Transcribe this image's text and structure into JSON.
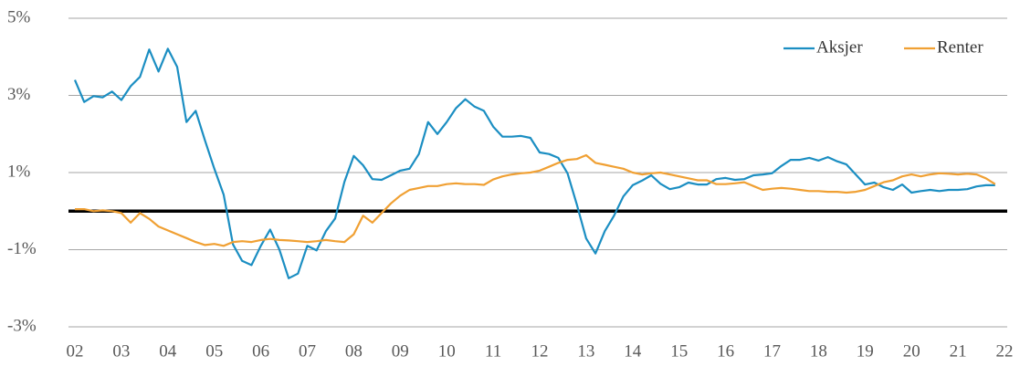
{
  "chart_data": {
    "type": "line",
    "x": [
      2002.0,
      2002.2,
      2002.4,
      2002.6,
      2002.8,
      2003.0,
      2003.2,
      2003.4,
      2003.6,
      2003.8,
      2004.0,
      2004.2,
      2004.4,
      2004.6,
      2004.8,
      2005.0,
      2005.2,
      2005.4,
      2005.6,
      2005.8,
      2006.0,
      2006.2,
      2006.4,
      2006.6,
      2006.8,
      2007.0,
      2007.2,
      2007.4,
      2007.6,
      2007.8,
      2008.0,
      2008.2,
      2008.4,
      2008.6,
      2008.8,
      2009.0,
      2009.2,
      2009.4,
      2009.6,
      2009.8,
      2010.0,
      2010.2,
      2010.4,
      2010.6,
      2010.8,
      2011.0,
      2011.2,
      2011.4,
      2011.6,
      2011.8,
      2012.0,
      2012.2,
      2012.4,
      2012.6,
      2012.8,
      2013.0,
      2013.2,
      2013.4,
      2013.6,
      2013.8,
      2014.0,
      2014.2,
      2014.4,
      2014.6,
      2014.8,
      2015.0,
      2015.2,
      2015.4,
      2015.6,
      2015.8,
      2016.0,
      2016.2,
      2016.4,
      2016.6,
      2016.8,
      2017.0,
      2017.2,
      2017.4,
      2017.6,
      2017.8,
      2018.0,
      2018.2,
      2018.4,
      2018.6,
      2018.8,
      2019.0,
      2019.2,
      2019.4,
      2019.6,
      2019.8,
      2020.0,
      2020.2,
      2020.4,
      2020.6,
      2020.8,
      2021.0,
      2021.2,
      2021.4,
      2021.6,
      2021.8
    ],
    "series": [
      {
        "name": "Aksjer",
        "color": "#1b8ec2",
        "values": [
          3.4,
          2.83,
          2.98,
          2.95,
          3.1,
          2.88,
          3.24,
          3.48,
          4.19,
          3.62,
          4.21,
          3.74,
          2.31,
          2.6,
          1.83,
          1.1,
          0.43,
          -0.86,
          -1.29,
          -1.4,
          -0.9,
          -0.48,
          -1.0,
          -1.74,
          -1.62,
          -0.9,
          -1.02,
          -0.52,
          -0.19,
          0.76,
          1.43,
          1.19,
          0.83,
          0.81,
          0.93,
          1.05,
          1.1,
          1.48,
          2.31,
          2.0,
          2.31,
          2.67,
          2.9,
          2.71,
          2.6,
          2.19,
          1.93,
          1.93,
          1.95,
          1.9,
          1.52,
          1.48,
          1.38,
          0.98,
          0.17,
          -0.71,
          -1.1,
          -0.52,
          -0.12,
          0.38,
          0.67,
          0.79,
          0.93,
          0.71,
          0.57,
          0.62,
          0.74,
          0.69,
          0.69,
          0.83,
          0.86,
          0.81,
          0.83,
          0.93,
          0.95,
          0.98,
          1.17,
          1.33,
          1.33,
          1.38,
          1.31,
          1.4,
          1.29,
          1.21,
          0.95,
          0.69,
          0.74,
          0.62,
          0.55,
          0.69,
          0.48,
          0.52,
          0.55,
          0.52,
          0.55,
          0.55,
          0.57,
          0.64,
          0.67,
          0.67
        ]
      },
      {
        "name": "Renter",
        "color": "#f0a033",
        "values": [
          0.05,
          0.05,
          0.0,
          0.02,
          0.0,
          -0.05,
          -0.3,
          -0.05,
          -0.2,
          -0.4,
          -0.5,
          -0.6,
          -0.7,
          -0.8,
          -0.88,
          -0.85,
          -0.9,
          -0.8,
          -0.78,
          -0.8,
          -0.75,
          -0.72,
          -0.75,
          -0.76,
          -0.78,
          -0.8,
          -0.78,
          -0.75,
          -0.78,
          -0.8,
          -0.6,
          -0.12,
          -0.3,
          -0.05,
          0.2,
          0.4,
          0.55,
          0.6,
          0.65,
          0.65,
          0.7,
          0.72,
          0.7,
          0.7,
          0.68,
          0.82,
          0.9,
          0.95,
          0.98,
          1.0,
          1.05,
          1.15,
          1.25,
          1.33,
          1.35,
          1.45,
          1.25,
          1.2,
          1.15,
          1.1,
          1.0,
          0.95,
          0.98,
          1.0,
          0.95,
          0.9,
          0.85,
          0.8,
          0.8,
          0.7,
          0.7,
          0.72,
          0.75,
          0.65,
          0.55,
          0.58,
          0.6,
          0.58,
          0.55,
          0.52,
          0.52,
          0.5,
          0.5,
          0.48,
          0.5,
          0.55,
          0.65,
          0.75,
          0.8,
          0.9,
          0.95,
          0.9,
          0.95,
          0.98,
          0.97,
          0.95,
          0.97,
          0.95,
          0.85,
          0.7
        ]
      }
    ],
    "xlim": [
      2002,
      2022
    ],
    "xticks": [
      {
        "value": 2002,
        "label": "02"
      },
      {
        "value": 2003,
        "label": "03"
      },
      {
        "value": 2004,
        "label": "04"
      },
      {
        "value": 2005,
        "label": "05"
      },
      {
        "value": 2006,
        "label": "06"
      },
      {
        "value": 2007,
        "label": "07"
      },
      {
        "value": 2008,
        "label": "08"
      },
      {
        "value": 2009,
        "label": "09"
      },
      {
        "value": 2010,
        "label": "10"
      },
      {
        "value": 2011,
        "label": "11"
      },
      {
        "value": 2012,
        "label": "12"
      },
      {
        "value": 2013,
        "label": "13"
      },
      {
        "value": 2014,
        "label": "14"
      },
      {
        "value": 2015,
        "label": "15"
      },
      {
        "value": 2016,
        "label": "16"
      },
      {
        "value": 2017,
        "label": "17"
      },
      {
        "value": 2018,
        "label": "18"
      },
      {
        "value": 2019,
        "label": "19"
      },
      {
        "value": 2020,
        "label": "20"
      },
      {
        "value": 2021,
        "label": "21"
      },
      {
        "value": 2022,
        "label": "22"
      }
    ],
    "ylim": [
      -3,
      5
    ],
    "yticks": [
      {
        "value": -3,
        "label": "-3%"
      },
      {
        "value": -1,
        "label": "-1%"
      },
      {
        "value": 1,
        "label": "1%"
      },
      {
        "value": 3,
        "label": "3%"
      },
      {
        "value": 5,
        "label": "5%"
      }
    ],
    "grid": true,
    "hline": 0,
    "legend": "top-right"
  }
}
